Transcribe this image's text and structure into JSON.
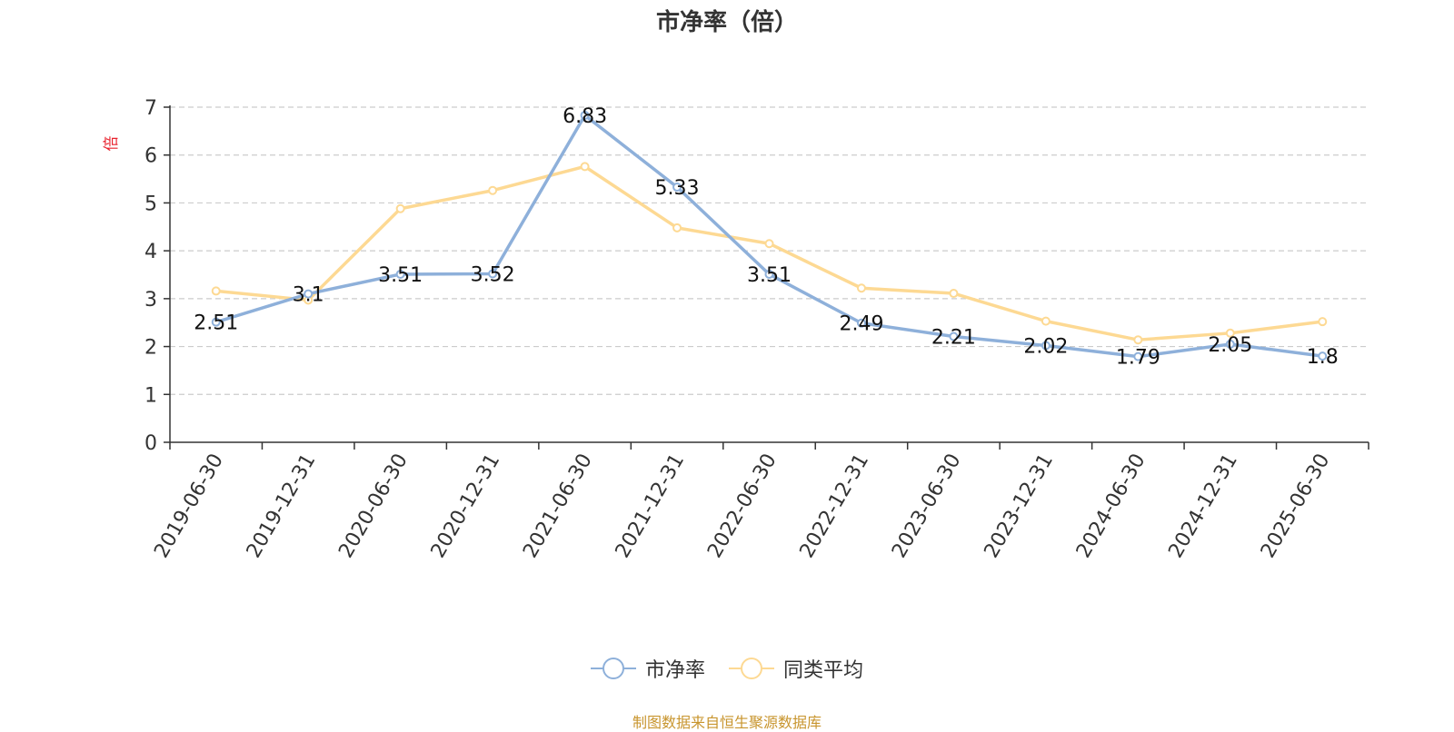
{
  "chart_data": {
    "type": "line",
    "title": "市净率（倍）",
    "ylabel": "倍",
    "xlabel": "",
    "ylim": [
      0,
      7
    ],
    "y_ticks": [
      0,
      1,
      2,
      3,
      4,
      5,
      6,
      7
    ],
    "grid": true,
    "legend_position": "bottom",
    "categories": [
      "2019-06-30",
      "2019-12-31",
      "2020-06-30",
      "2020-12-31",
      "2021-06-30",
      "2021-12-31",
      "2022-06-30",
      "2022-12-31",
      "2023-06-30",
      "2023-12-31",
      "2024-06-30",
      "2024-12-31",
      "2025-06-30"
    ],
    "series": [
      {
        "name": "市净率",
        "color": "#8eb0da",
        "values": [
          2.51,
          3.1,
          3.51,
          3.52,
          6.83,
          5.33,
          3.51,
          2.49,
          2.21,
          2.02,
          1.79,
          2.05,
          1.8
        ],
        "labels": [
          "2.51",
          "3.1",
          "3.51",
          "3.52",
          "6.83",
          "5.33",
          "3.51",
          "2.49",
          "2.21",
          "2.02",
          "1.79",
          "2.05",
          "1.8"
        ]
      },
      {
        "name": "同类平均",
        "color": "#fdd993",
        "values": [
          3.16,
          2.97,
          4.88,
          5.26,
          5.76,
          4.48,
          4.15,
          3.22,
          3.11,
          2.53,
          2.14,
          2.28,
          2.52
        ]
      }
    ]
  },
  "source_note": "制图数据来自恒生聚源数据库",
  "colors": {
    "axis_label": "#e8222d",
    "source_note": "#c8952e",
    "grid": "#cccccc"
  }
}
